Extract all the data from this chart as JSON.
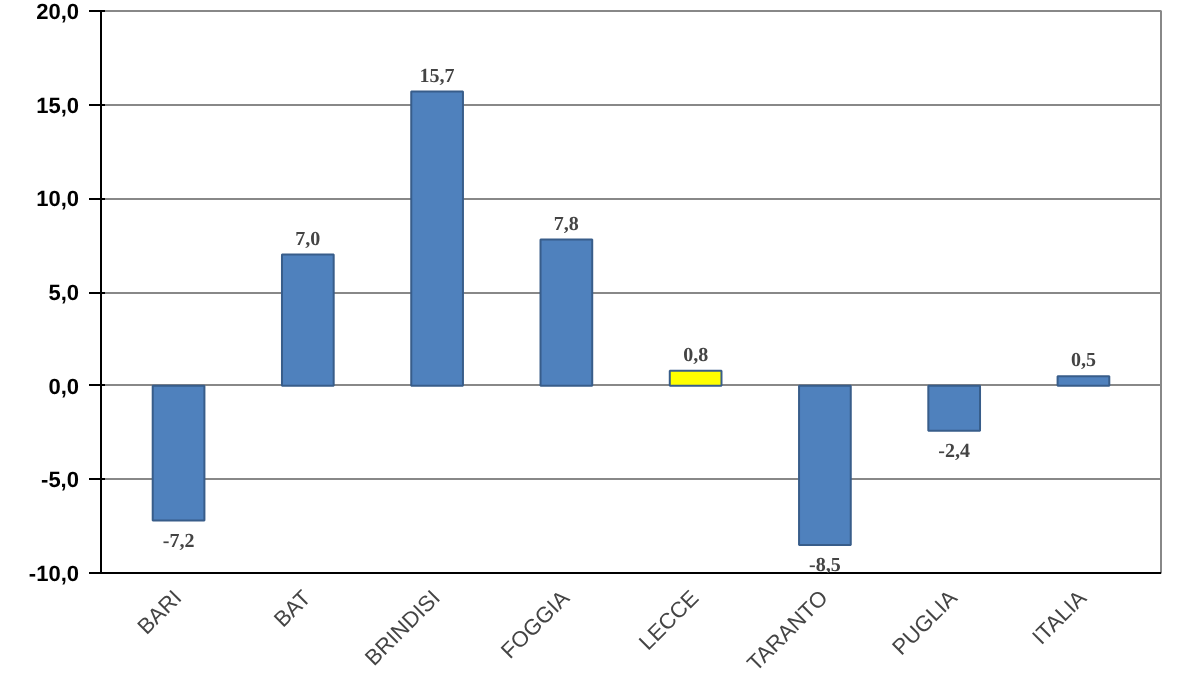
{
  "chart_data": {
    "type": "bar",
    "categories": [
      "BARI",
      "BAT",
      "BRINDISI",
      "FOGGIA",
      "LECCE",
      "TARANTO",
      "PUGLIA",
      "ITALIA"
    ],
    "values": [
      -7.2,
      7.0,
      15.7,
      7.8,
      0.8,
      -8.5,
      -2.4,
      0.5
    ],
    "colors": [
      "#4f81bd",
      "#4f81bd",
      "#4f81bd",
      "#4f81bd",
      "#ffff00",
      "#4f81bd",
      "#4f81bd",
      "#4f81bd"
    ],
    "value_labels": [
      "-7,2",
      "7,0",
      "15,7",
      "7,8",
      "0,8",
      "-8,5",
      "-2,4",
      "0,5"
    ],
    "ylim": [
      -10,
      20
    ],
    "yticks": [
      {
        "value": -10,
        "label": "-10,0"
      },
      {
        "value": -5,
        "label": "-5,0"
      },
      {
        "value": 0,
        "label": "0,0"
      },
      {
        "value": 5,
        "label": "5,0"
      },
      {
        "value": 10,
        "label": "10,0"
      },
      {
        "value": 15,
        "label": "15,0"
      },
      {
        "value": 20,
        "label": "20,0"
      }
    ],
    "grid": "y"
  }
}
